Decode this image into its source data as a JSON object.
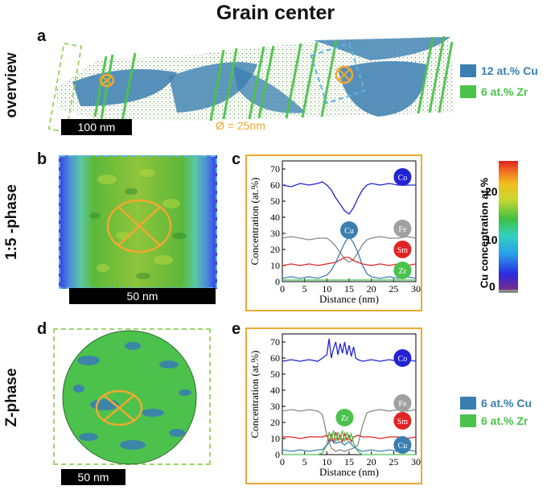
{
  "title": "Grain center",
  "row_labels": {
    "overview": "overview",
    "phase15": "1:5 -phase",
    "zphase": "Z-phase"
  },
  "panel_letters": {
    "a": "a",
    "b": "b",
    "c": "c",
    "d": "d",
    "e": "e"
  },
  "overview": {
    "scalebar": "100 nm",
    "diameter_label": "Ø = 25nm",
    "legend": [
      {
        "label": "12 at.% Cu",
        "color": "#3b7fb0"
      },
      {
        "label": "6  at.% Zr",
        "color": "#4cc24c"
      }
    ]
  },
  "panel_b": {
    "scalebar": "50 nm"
  },
  "panel_d": {
    "scalebar": "50 nm"
  },
  "zphase_legend": [
    {
      "label": "6 at.% Cu",
      "color": "#3b7fb0"
    },
    {
      "label": "6 at.% Zr",
      "color": "#4cc24c"
    }
  ],
  "colorbar": {
    "label": "Cu concentration  at.%",
    "ticks": [
      "0",
      "10",
      "20"
    ]
  },
  "colors": {
    "orange": "#f0a830",
    "box_blue": "#5ab4e0",
    "box_green": "#9ed66a"
  },
  "chart_data": [
    {
      "type": "line",
      "panel": "c",
      "xlabel": "Distance (nm)",
      "ylabel": "Concentration (at.%)",
      "xlim": [
        0,
        30
      ],
      "ylim": [
        0,
        75
      ],
      "xticks": [
        0,
        5,
        10,
        15,
        20,
        25,
        30
      ],
      "yticks": [
        0,
        10,
        20,
        30,
        40,
        50,
        60,
        70
      ],
      "series": [
        {
          "name": "Co",
          "color": "#2323d6",
          "x": [
            0,
            2,
            4,
            6,
            8,
            9,
            10,
            11,
            12,
            13,
            14,
            15,
            16,
            17,
            18,
            19,
            20,
            22,
            24,
            26,
            28,
            30
          ],
          "y": [
            60,
            59,
            61,
            60,
            61,
            62,
            60,
            57,
            52,
            48,
            44,
            42,
            46,
            52,
            57,
            60,
            61,
            60,
            61,
            60,
            60,
            60
          ]
        },
        {
          "name": "Fe",
          "color": "#888888",
          "x": [
            0,
            2,
            4,
            6,
            8,
            10,
            11,
            12,
            13,
            14,
            15,
            16,
            17,
            18,
            19,
            20,
            22,
            24,
            26,
            28,
            30
          ],
          "y": [
            27,
            28,
            27,
            26,
            27,
            27,
            25,
            22,
            18,
            14,
            12,
            14,
            18,
            23,
            26,
            27,
            28,
            27,
            27,
            28,
            27
          ]
        },
        {
          "name": "Sm",
          "color": "#e02424",
          "x": [
            0,
            2,
            4,
            6,
            8,
            10,
            12,
            14,
            15,
            16,
            18,
            20,
            22,
            24,
            26,
            28,
            30
          ],
          "y": [
            10,
            11,
            10,
            11,
            10,
            11,
            12,
            15,
            15,
            13,
            11,
            10,
            11,
            10,
            11,
            10,
            11
          ]
        },
        {
          "name": "Cu",
          "color": "#3b7fb0",
          "x": [
            0,
            2,
            4,
            6,
            8,
            10,
            11,
            12,
            13,
            14,
            15,
            16,
            17,
            18,
            19,
            20,
            22,
            24,
            26,
            28,
            30
          ],
          "y": [
            2,
            3,
            2,
            3,
            2,
            4,
            7,
            12,
            18,
            24,
            28,
            24,
            18,
            10,
            5,
            3,
            2,
            3,
            2,
            3,
            2
          ]
        },
        {
          "name": "Zr",
          "color": "#4cc24c",
          "x": [
            0,
            5,
            10,
            15,
            20,
            25,
            30
          ],
          "y": [
            1,
            1,
            1,
            1,
            1,
            1,
            1
          ]
        }
      ],
      "labels": [
        "Co",
        "Cu",
        "Fe",
        "Sm",
        "Zr"
      ]
    },
    {
      "type": "line",
      "panel": "e",
      "xlabel": "Distance (nm)",
      "ylabel": "Concentration (at.%)",
      "xlim": [
        0,
        30
      ],
      "ylim": [
        0,
        75
      ],
      "xticks": [
        0,
        5,
        10,
        15,
        20,
        25,
        30
      ],
      "yticks": [
        0,
        10,
        20,
        30,
        40,
        50,
        60,
        70
      ],
      "series": [
        {
          "name": "Co",
          "color": "#2323d6",
          "x": [
            0,
            2,
            4,
            6,
            8,
            9,
            10,
            10.5,
            11,
            11.5,
            12,
            12.5,
            13,
            13.5,
            14,
            14.5,
            15,
            15.5,
            16,
            16.5,
            17,
            18,
            20,
            22,
            24,
            26,
            28,
            30
          ],
          "y": [
            58,
            59,
            58,
            59,
            58,
            60,
            62,
            72,
            60,
            66,
            70,
            62,
            69,
            63,
            70,
            62,
            68,
            61,
            67,
            60,
            59,
            58,
            59,
            58,
            59,
            58,
            59,
            58
          ]
        },
        {
          "name": "Fe",
          "color": "#888888",
          "x": [
            0,
            2,
            4,
            6,
            8,
            9,
            10,
            11,
            12,
            13,
            14,
            15,
            16,
            17,
            18,
            19,
            20,
            22,
            24,
            26,
            28,
            30
          ],
          "y": [
            27,
            28,
            27,
            28,
            27,
            25,
            12,
            4,
            2,
            3,
            2,
            3,
            4,
            6,
            18,
            26,
            27,
            28,
            27,
            28,
            27,
            28
          ]
        },
        {
          "name": "Sm",
          "color": "#e02424",
          "x": [
            0,
            2,
            4,
            6,
            8,
            9,
            10,
            10.5,
            11,
            11.5,
            12,
            12.5,
            13,
            13.5,
            14,
            14.5,
            15,
            15.5,
            16,
            17,
            18,
            20,
            22,
            24,
            26,
            28,
            30
          ],
          "y": [
            11,
            11,
            10,
            11,
            11,
            11,
            12,
            8,
            13,
            7,
            14,
            9,
            12,
            8,
            13,
            9,
            12,
            8,
            11,
            12,
            11,
            11,
            10,
            11,
            11,
            10,
            11
          ]
        },
        {
          "name": "Zr",
          "color": "#4cc24c",
          "x": [
            0,
            2,
            4,
            6,
            8,
            9,
            10,
            10.5,
            11,
            11.5,
            12,
            12.5,
            13,
            13.5,
            14,
            14.5,
            15,
            15.5,
            16,
            17,
            18,
            20,
            22,
            24,
            26,
            28,
            30
          ],
          "y": [
            0,
            0,
            0,
            0,
            0,
            1,
            6,
            14,
            9,
            15,
            8,
            14,
            9,
            15,
            8,
            14,
            9,
            13,
            7,
            2,
            0,
            0,
            0,
            0,
            0,
            0,
            0
          ]
        },
        {
          "name": "Cu",
          "color": "#3b7fb0",
          "x": [
            0,
            2,
            4,
            6,
            8,
            9,
            10,
            11,
            12,
            13,
            14,
            15,
            16,
            17,
            18,
            20,
            22,
            24,
            26,
            28,
            30
          ],
          "y": [
            3,
            2,
            3,
            2,
            3,
            3,
            6,
            9,
            7,
            8,
            6,
            8,
            5,
            3,
            2,
            3,
            2,
            3,
            2,
            3,
            2
          ]
        }
      ],
      "labels": [
        "Co",
        "Fe",
        "Sm",
        "Zr",
        "Cu"
      ]
    }
  ]
}
